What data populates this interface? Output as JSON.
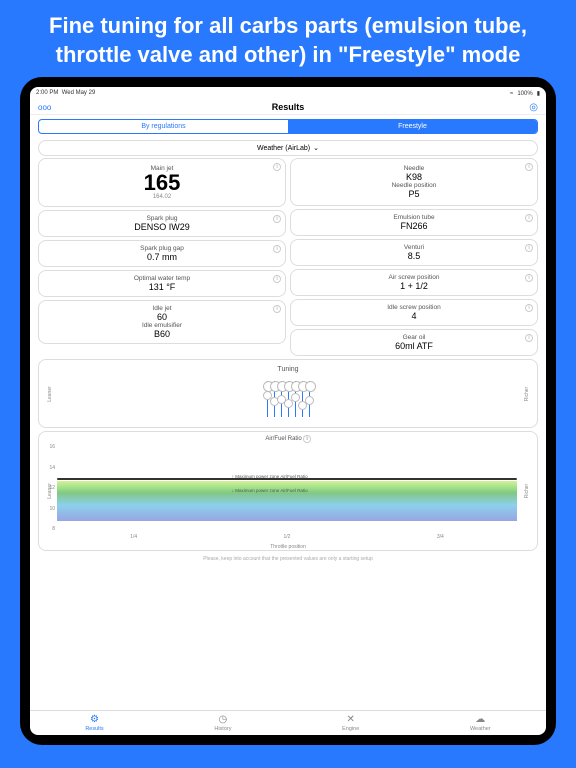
{
  "promo_title": "Fine tuning for all carbs parts (emulsion tube, throttle valve and other) in \"Freestyle\" mode",
  "status": {
    "time": "2:00 PM",
    "date": "Wed May 29",
    "signal": "ooo",
    "wifi": "≈",
    "battery": "100%"
  },
  "nav": {
    "back": "ooo",
    "title": "Results",
    "icon": "◎"
  },
  "segments": {
    "left": "By regulations",
    "right": "Freestyle",
    "active": "right"
  },
  "weather_label": "Weather (AirLab)",
  "left_col": {
    "main_jet": {
      "label": "Main jet",
      "value": "165",
      "sub": "164.02"
    },
    "spark_plug": {
      "label": "Spark plug",
      "value": "DENSO IW29"
    },
    "spark_gap": {
      "label": "Spark plug gap",
      "value": "0.7 mm"
    },
    "water_temp": {
      "label": "Optimal water temp",
      "value": "131 °F"
    },
    "idle_jet": {
      "label": "Idle jet",
      "value": "60"
    },
    "idle_emul": {
      "label": "Idle emulsifier",
      "value": "B60"
    }
  },
  "right_col": {
    "needle": {
      "label": "Needle",
      "value": "K98"
    },
    "needle_pos": {
      "label": "Needle position",
      "value": "P5"
    },
    "emulsion": {
      "label": "Emulsion tube",
      "value": "FN266"
    },
    "venturi": {
      "label": "Venturi",
      "value": "8.5"
    },
    "air_screw": {
      "label": "Air screw position",
      "value": "1 + 1/2"
    },
    "idle_screw": {
      "label": "Idle screw position",
      "value": "4"
    },
    "gear_oil": {
      "label": "Gear oil",
      "value": "60ml ATF"
    }
  },
  "tuning": {
    "title": "Tuning",
    "leaner": "Leaner",
    "richer": "Richer",
    "positions": [
      10,
      16,
      14,
      18,
      12,
      20,
      15
    ]
  },
  "chart": {
    "title": "Air/Fuel Ratio",
    "leaner": "Leaner",
    "richer": "Richer",
    "y_ticks": [
      "16",
      "14",
      "12",
      "10",
      "8"
    ],
    "x_ticks": [
      "1/4",
      "1/2",
      "3/4"
    ],
    "x_title": "Throttle position",
    "zone_top": "↑ Maximum power zone Air/Fuel Ratio",
    "zone_bot": "↓ Maximum power zone Air/Fuel Ratio"
  },
  "note": "Please, keep into account that the presented values are only a starting setup",
  "tabs": {
    "results": "Results",
    "history": "History",
    "engine": "Engine",
    "weather": "Weather"
  }
}
